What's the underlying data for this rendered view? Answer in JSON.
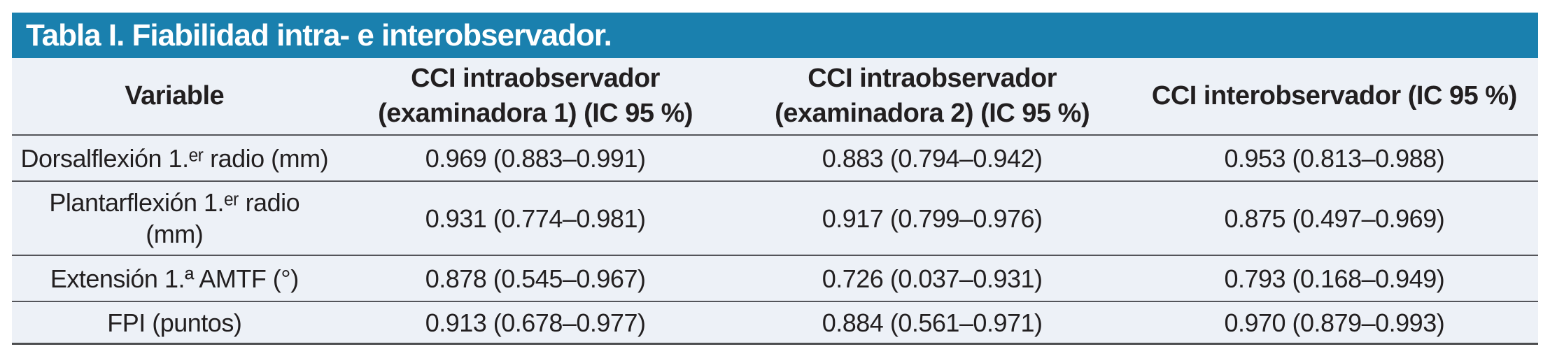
{
  "colors": {
    "title_bar_bg": "#1a80ae",
    "title_text": "#ffffff",
    "table_bg": "#edf1f7",
    "row_line": "#54555a",
    "bottom_line": "#4c4d4f",
    "body_text": "#221f20"
  },
  "table": {
    "title": "Tabla I. Fiabilidad intra- e interobservador.",
    "columns": [
      {
        "id": "variable",
        "label": "Variable"
      },
      {
        "id": "cci_intra_1",
        "label": "CCI intraobservador\n(examinadora 1) (IC 95 %)"
      },
      {
        "id": "cci_intra_2",
        "label": "CCI intraobservador\n(examinadora 2) (IC 95 %)"
      },
      {
        "id": "cci_inter",
        "label": "CCI interobservador (IC 95 %)"
      }
    ],
    "rows": [
      {
        "variable": "Dorsalflexión 1.ᵉʳ radio (mm)",
        "cci_intra_1": "0.969 (0.883–0.991)",
        "cci_intra_2": "0.883 (0.794–0.942)",
        "cci_inter": "0.953 (0.813–0.988)"
      },
      {
        "variable": "Plantarflexión 1.ᵉʳ radio\n(mm)",
        "cci_intra_1": "0.931 (0.774–0.981)",
        "cci_intra_2": "0.917 (0.799–0.976)",
        "cci_inter": "0.875 (0.497–0.969)"
      },
      {
        "variable": "Extensión 1.ª AMTF (°)",
        "cci_intra_1": "0.878 (0.545–0.967)",
        "cci_intra_2": "0.726 (0.037–0.931)",
        "cci_inter": "0.793 (0.168–0.949)"
      },
      {
        "variable": "FPI (puntos)",
        "cci_intra_1": "0.913 (0.678–0.977)",
        "cci_intra_2": "0.884 (0.561–0.971)",
        "cci_inter": "0.970 (0.879–0.993)"
      }
    ]
  }
}
